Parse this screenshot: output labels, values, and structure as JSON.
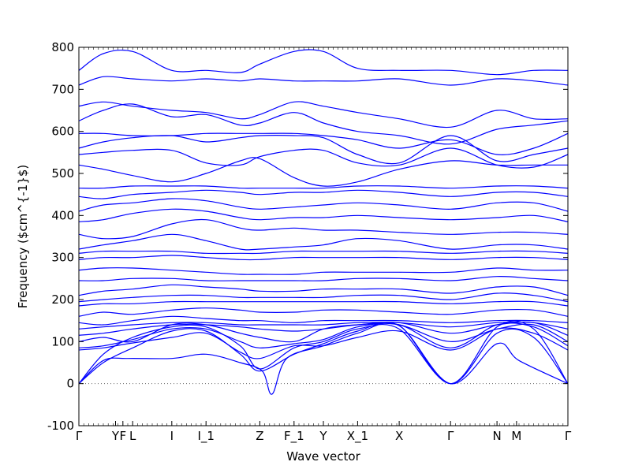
{
  "chart_data": {
    "type": "line",
    "xlabel": "Wave vector",
    "ylabel": "Frequency ($cm^{-1}$)",
    "ylim": [
      -100,
      800
    ],
    "grid": false,
    "legend": "none",
    "y_ticks": [
      -100,
      0,
      100,
      200,
      300,
      400,
      500,
      600,
      700,
      800
    ],
    "x_ticks": [
      {
        "label": "Γ",
        "x": 0.0
      },
      {
        "label": "Y",
        "x": 0.075
      },
      {
        "label": "F",
        "x": 0.09
      },
      {
        "label": "L",
        "x": 0.11
      },
      {
        "label": "I",
        "x": 0.19
      },
      {
        "label": "I_1",
        "x": 0.26
      },
      {
        "label": "Z",
        "x": 0.37
      },
      {
        "label": "F_1",
        "x": 0.44
      },
      {
        "label": "Y",
        "x": 0.5
      },
      {
        "label": "X_1",
        "x": 0.57
      },
      {
        "label": "X",
        "x": 0.655
      },
      {
        "label": "Γ",
        "x": 0.76
      },
      {
        "label": "N",
        "x": 0.855
      },
      {
        "label": "M",
        "x": 0.895
      },
      {
        "label": "Γ",
        "x": 1.0
      }
    ],
    "zero_line": {
      "y": 0,
      "style": "dotted"
    },
    "series_color": "#0000ff",
    "series": [
      {
        "x": [
          0,
          0.05,
          0.11,
          0.19,
          0.26,
          0.33,
          0.37,
          0.44,
          0.5,
          0.57,
          0.655,
          0.76,
          0.855,
          0.93,
          1.0
        ],
        "values": [
          0,
          70,
          110,
          135,
          135,
          90,
          35,
          85,
          100,
          130,
          130,
          0,
          120,
          110,
          0
        ]
      },
      {
        "x": [
          0,
          0.05,
          0.11,
          0.19,
          0.26,
          0.33,
          0.37,
          0.44,
          0.5,
          0.57,
          0.655,
          0.76,
          0.855,
          0.93,
          1.0
        ],
        "values": [
          0,
          50,
          85,
          125,
          125,
          70,
          30,
          70,
          95,
          125,
          138,
          0,
          135,
          130,
          0
        ]
      },
      {
        "x": [
          0,
          0.05,
          0.1,
          0.19,
          0.26,
          0.33,
          0.375,
          0.395,
          0.425,
          0.5,
          0.57,
          0.655,
          0.76,
          0.855,
          0.9,
          1.0
        ],
        "values": [
          0,
          55,
          60,
          60,
          70,
          50,
          30,
          -25,
          60,
          90,
          120,
          138,
          0,
          95,
          55,
          0
        ]
      },
      {
        "x": [
          0,
          0.05,
          0.1,
          0.19,
          0.26,
          0.33,
          0.37,
          0.44,
          0.5,
          0.57,
          0.655,
          0.76,
          0.855,
          0.93,
          1.0
        ],
        "values": [
          80,
          85,
          95,
          110,
          120,
          75,
          60,
          90,
          90,
          110,
          125,
          80,
          130,
          120,
          80
        ]
      },
      {
        "x": [
          0,
          0.05,
          0.11,
          0.19,
          0.26,
          0.33,
          0.37,
          0.44,
          0.5,
          0.57,
          0.655,
          0.76,
          0.855,
          0.93,
          1.0
        ],
        "values": [
          85,
          90,
          105,
          130,
          130,
          100,
          85,
          95,
          105,
          135,
          140,
          85,
          140,
          135,
          90
        ]
      },
      {
        "x": [
          0,
          0.05,
          0.11,
          0.19,
          0.26,
          0.33,
          0.37,
          0.44,
          0.5,
          0.57,
          0.655,
          0.76,
          0.855,
          0.93,
          1.0
        ],
        "values": [
          100,
          110,
          100,
          140,
          140,
          120,
          110,
          100,
          130,
          140,
          140,
          100,
          130,
          140,
          100
        ]
      },
      {
        "x": [
          0,
          0.05,
          0.11,
          0.19,
          0.26,
          0.33,
          0.37,
          0.44,
          0.5,
          0.57,
          0.655,
          0.76,
          0.855,
          0.93,
          1.0
        ],
        "values": [
          115,
          120,
          130,
          140,
          140,
          135,
          130,
          125,
          130,
          140,
          145,
          120,
          140,
          145,
          115
        ]
      },
      {
        "x": [
          0,
          0.05,
          0.11,
          0.19,
          0.26,
          0.33,
          0.37,
          0.44,
          0.5,
          0.57,
          0.655,
          0.76,
          0.855,
          0.93,
          1.0
        ],
        "values": [
          130,
          135,
          140,
          145,
          145,
          140,
          140,
          140,
          140,
          145,
          145,
          135,
          145,
          145,
          130
        ]
      },
      {
        "x": [
          0,
          0.05,
          0.11,
          0.19,
          0.26,
          0.33,
          0.37,
          0.44,
          0.5,
          0.57,
          0.655,
          0.76,
          0.855,
          0.93,
          1.0
        ],
        "values": [
          145,
          140,
          150,
          160,
          155,
          150,
          150,
          145,
          150,
          150,
          150,
          145,
          150,
          150,
          145
        ]
      },
      {
        "x": [
          0,
          0.05,
          0.11,
          0.19,
          0.26,
          0.33,
          0.37,
          0.44,
          0.5,
          0.57,
          0.655,
          0.76,
          0.855,
          0.93,
          1.0
        ],
        "values": [
          160,
          170,
          165,
          175,
          180,
          175,
          170,
          170,
          175,
          175,
          170,
          165,
          175,
          175,
          160
        ]
      },
      {
        "x": [
          0,
          0.05,
          0.11,
          0.19,
          0.26,
          0.33,
          0.37,
          0.44,
          0.5,
          0.57,
          0.655,
          0.76,
          0.855,
          0.93,
          1.0
        ],
        "values": [
          185,
          190,
          190,
          195,
          195,
          195,
          195,
          195,
          195,
          195,
          195,
          190,
          195,
          195,
          185
        ]
      },
      {
        "x": [
          0,
          0.05,
          0.11,
          0.19,
          0.26,
          0.33,
          0.37,
          0.44,
          0.5,
          0.57,
          0.655,
          0.76,
          0.855,
          0.93,
          1.0
        ],
        "values": [
          195,
          200,
          205,
          210,
          210,
          205,
          205,
          205,
          205,
          210,
          210,
          200,
          215,
          210,
          195
        ]
      },
      {
        "x": [
          0,
          0.05,
          0.11,
          0.19,
          0.26,
          0.33,
          0.37,
          0.44,
          0.5,
          0.57,
          0.655,
          0.76,
          0.855,
          0.93,
          1.0
        ],
        "values": [
          210,
          220,
          225,
          235,
          230,
          225,
          220,
          220,
          225,
          225,
          225,
          215,
          230,
          230,
          210
        ]
      },
      {
        "x": [
          0,
          0.05,
          0.11,
          0.19,
          0.26,
          0.33,
          0.37,
          0.44,
          0.5,
          0.57,
          0.655,
          0.76,
          0.855,
          0.93,
          1.0
        ],
        "values": [
          245,
          245,
          250,
          250,
          245,
          245,
          245,
          245,
          245,
          250,
          250,
          245,
          255,
          250,
          245
        ]
      },
      {
        "x": [
          0,
          0.05,
          0.11,
          0.19,
          0.26,
          0.33,
          0.37,
          0.44,
          0.5,
          0.57,
          0.655,
          0.76,
          0.855,
          0.93,
          1.0
        ],
        "values": [
          270,
          275,
          275,
          270,
          265,
          260,
          260,
          260,
          265,
          265,
          265,
          265,
          275,
          270,
          270
        ]
      },
      {
        "x": [
          0,
          0.05,
          0.11,
          0.19,
          0.26,
          0.33,
          0.37,
          0.44,
          0.5,
          0.57,
          0.655,
          0.76,
          0.855,
          0.93,
          1.0
        ],
        "values": [
          295,
          300,
          300,
          305,
          300,
          295,
          295,
          300,
          300,
          300,
          300,
          295,
          300,
          300,
          295
        ]
      },
      {
        "x": [
          0,
          0.05,
          0.11,
          0.19,
          0.26,
          0.33,
          0.37,
          0.44,
          0.5,
          0.57,
          0.655,
          0.76,
          0.855,
          0.93,
          1.0
        ],
        "values": [
          310,
          315,
          315,
          315,
          310,
          310,
          310,
          315,
          315,
          315,
          315,
          310,
          315,
          315,
          310
        ]
      },
      {
        "x": [
          0,
          0.05,
          0.11,
          0.19,
          0.26,
          0.33,
          0.37,
          0.44,
          0.5,
          0.57,
          0.655,
          0.76,
          0.855,
          0.93,
          1.0
        ],
        "values": [
          320,
          330,
          340,
          355,
          340,
          320,
          320,
          325,
          330,
          345,
          340,
          320,
          330,
          330,
          320
        ]
      },
      {
        "x": [
          0,
          0.05,
          0.11,
          0.19,
          0.26,
          0.33,
          0.37,
          0.44,
          0.5,
          0.57,
          0.655,
          0.76,
          0.855,
          0.93,
          1.0
        ],
        "values": [
          355,
          345,
          350,
          380,
          390,
          370,
          365,
          370,
          365,
          365,
          360,
          355,
          360,
          360,
          355
        ]
      },
      {
        "x": [
          0,
          0.05,
          0.11,
          0.19,
          0.26,
          0.33,
          0.37,
          0.44,
          0.5,
          0.57,
          0.655,
          0.76,
          0.855,
          0.93,
          1.0
        ],
        "values": [
          385,
          390,
          405,
          415,
          410,
          395,
          390,
          395,
          395,
          400,
          395,
          390,
          395,
          400,
          385
        ]
      },
      {
        "x": [
          0,
          0.05,
          0.11,
          0.19,
          0.26,
          0.33,
          0.37,
          0.44,
          0.5,
          0.57,
          0.655,
          0.76,
          0.855,
          0.93,
          1.0
        ],
        "values": [
          410,
          425,
          430,
          440,
          435,
          420,
          415,
          420,
          425,
          430,
          425,
          415,
          430,
          430,
          410
        ]
      },
      {
        "x": [
          0,
          0.05,
          0.11,
          0.19,
          0.26,
          0.33,
          0.37,
          0.44,
          0.5,
          0.57,
          0.655,
          0.76,
          0.855,
          0.93,
          1.0
        ],
        "values": [
          445,
          440,
          450,
          455,
          460,
          455,
          450,
          455,
          455,
          460,
          455,
          445,
          455,
          455,
          445
        ]
      },
      {
        "x": [
          0,
          0.05,
          0.11,
          0.19,
          0.26,
          0.33,
          0.37,
          0.44,
          0.5,
          0.57,
          0.655,
          0.76,
          0.855,
          0.93,
          1.0
        ],
        "values": [
          465,
          465,
          470,
          470,
          470,
          465,
          465,
          465,
          465,
          470,
          470,
          465,
          470,
          470,
          465
        ]
      },
      {
        "x": [
          0,
          0.05,
          0.11,
          0.19,
          0.26,
          0.33,
          0.37,
          0.44,
          0.5,
          0.57,
          0.655,
          0.76,
          0.855,
          0.93,
          1.0
        ],
        "values": [
          520,
          510,
          495,
          480,
          500,
          530,
          535,
          490,
          470,
          480,
          510,
          530,
          520,
          520,
          520
        ]
      },
      {
        "x": [
          0,
          0.05,
          0.11,
          0.19,
          0.26,
          0.33,
          0.37,
          0.44,
          0.5,
          0.57,
          0.655,
          0.76,
          0.855,
          0.93,
          1.0
        ],
        "values": [
          545,
          550,
          555,
          555,
          525,
          520,
          540,
          555,
          555,
          525,
          520,
          560,
          520,
          515,
          545
        ]
      },
      {
        "x": [
          0,
          0.05,
          0.11,
          0.19,
          0.26,
          0.33,
          0.37,
          0.44,
          0.5,
          0.57,
          0.655,
          0.76,
          0.855,
          0.93,
          1.0
        ],
        "values": [
          560,
          575,
          585,
          590,
          575,
          585,
          590,
          590,
          585,
          545,
          525,
          590,
          530,
          545,
          560
        ]
      },
      {
        "x": [
          0,
          0.05,
          0.11,
          0.19,
          0.26,
          0.33,
          0.37,
          0.44,
          0.5,
          0.57,
          0.655,
          0.76,
          0.855,
          0.93,
          1.0
        ],
        "values": [
          595,
          595,
          590,
          590,
          595,
          595,
          595,
          595,
          590,
          580,
          560,
          580,
          545,
          560,
          595
        ]
      },
      {
        "x": [
          0,
          0.05,
          0.11,
          0.19,
          0.26,
          0.33,
          0.37,
          0.44,
          0.5,
          0.57,
          0.655,
          0.76,
          0.855,
          0.93,
          1.0
        ],
        "values": [
          625,
          650,
          665,
          635,
          640,
          615,
          620,
          645,
          620,
          600,
          590,
          570,
          605,
          615,
          625
        ]
      },
      {
        "x": [
          0,
          0.05,
          0.11,
          0.19,
          0.26,
          0.33,
          0.37,
          0.44,
          0.5,
          0.57,
          0.655,
          0.76,
          0.855,
          0.93,
          1.0
        ],
        "values": [
          660,
          670,
          660,
          650,
          645,
          630,
          640,
          670,
          660,
          645,
          630,
          610,
          650,
          630,
          630
        ]
      },
      {
        "x": [
          0,
          0.05,
          0.11,
          0.19,
          0.26,
          0.33,
          0.37,
          0.44,
          0.5,
          0.57,
          0.655,
          0.76,
          0.855,
          0.93,
          1.0
        ],
        "values": [
          710,
          730,
          725,
          720,
          725,
          720,
          725,
          720,
          720,
          720,
          725,
          710,
          725,
          720,
          710
        ]
      },
      {
        "x": [
          0,
          0.05,
          0.11,
          0.19,
          0.26,
          0.33,
          0.37,
          0.44,
          0.5,
          0.57,
          0.655,
          0.76,
          0.855,
          0.93,
          1.0
        ],
        "values": [
          745,
          785,
          790,
          745,
          745,
          740,
          760,
          790,
          790,
          750,
          745,
          745,
          735,
          745,
          745
        ]
      }
    ]
  }
}
